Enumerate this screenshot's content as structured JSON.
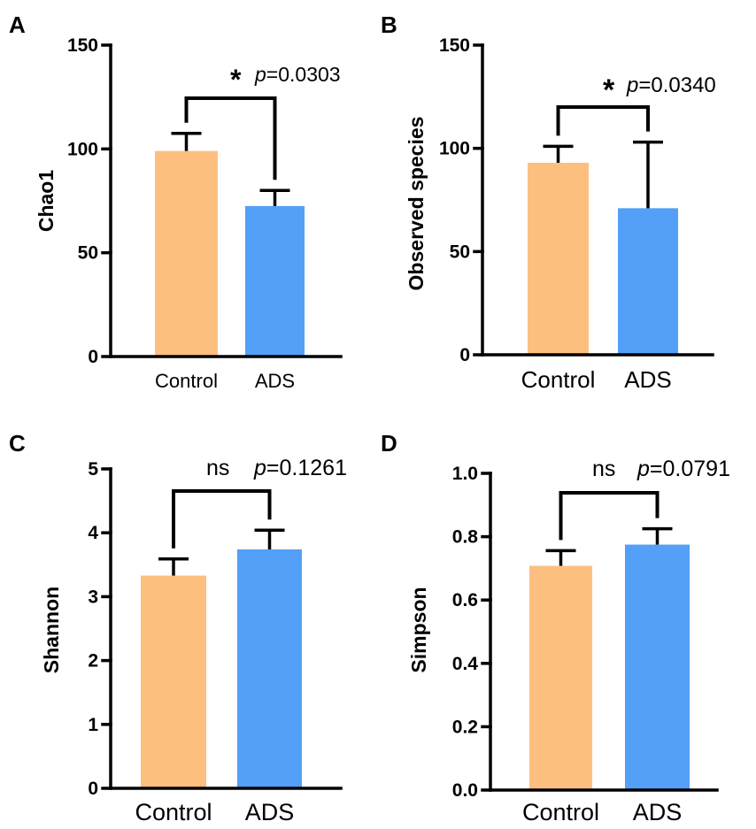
{
  "chart_data": [
    {
      "type": "bar",
      "panel": "A",
      "categories": [
        "Control",
        "ADS"
      ],
      "values": [
        99,
        72.5
      ],
      "errors": [
        8.5,
        7.5
      ],
      "colors": [
        "#FDBF80",
        "#549FF7"
      ],
      "ylabel": "Chao1",
      "ylim": [
        0,
        150
      ],
      "yticks": [
        "0",
        "50",
        "100",
        "150"
      ],
      "significance": {
        "mark": "*",
        "p_prefix": "p",
        "p_value": "=0.0303"
      }
    },
    {
      "type": "bar",
      "panel": "B",
      "categories": [
        "Control",
        "ADS"
      ],
      "values": [
        93,
        71
      ],
      "errors": [
        8,
        32
      ],
      "colors": [
        "#FDBF80",
        "#549FF7"
      ],
      "ylabel": "Observed species",
      "ylim": [
        0,
        150
      ],
      "yticks": [
        "0",
        "50",
        "100",
        "150"
      ],
      "significance": {
        "mark": "*",
        "p_prefix": "p",
        "p_value": "=0.0340"
      }
    },
    {
      "type": "bar",
      "panel": "C",
      "categories": [
        "Control",
        "ADS"
      ],
      "values": [
        3.33,
        3.74
      ],
      "errors": [
        0.26,
        0.3
      ],
      "colors": [
        "#FDBF80",
        "#549FF7"
      ],
      "ylabel": "Shannon",
      "ylim": [
        0,
        5
      ],
      "yticks": [
        "0",
        "1",
        "2",
        "3",
        "4",
        "5"
      ],
      "significance": {
        "mark": "ns",
        "p_prefix": "p",
        "p_value": "=0.1261"
      }
    },
    {
      "type": "bar",
      "panel": "D",
      "categories": [
        "Control",
        "ADS"
      ],
      "values": [
        0.708,
        0.775
      ],
      "errors": [
        0.048,
        0.05
      ],
      "colors": [
        "#FDBF80",
        "#549FF7"
      ],
      "ylabel": "Simpson",
      "ylim": [
        0,
        1.0
      ],
      "yticks": [
        "0.0",
        "0.2",
        "0.4",
        "0.6",
        "0.8",
        "1.0"
      ],
      "significance": {
        "mark": "ns",
        "p_prefix": "p",
        "p_value": "=0.0791"
      }
    }
  ]
}
